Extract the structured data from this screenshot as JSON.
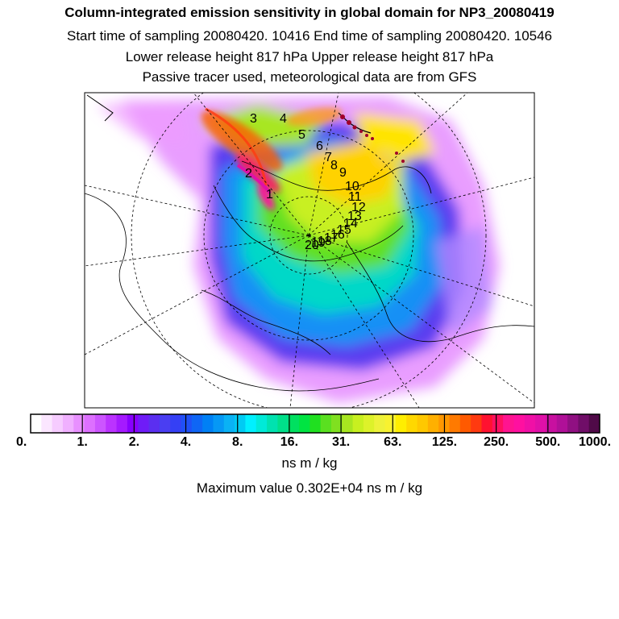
{
  "header": {
    "title": "Column-integrated emission sensitivity in global domain for NP3_20080419",
    "sampling": "Start time of sampling 20080420. 10416     End time of sampling 20080420. 10546",
    "release": "Lower release height  817 hPa        Upper release height  817 hPa",
    "tracer": "Passive tracer used, meteorological data are from GFS"
  },
  "trajectory_labels": [
    "1",
    "2",
    "3",
    "4",
    "5",
    "6",
    "7",
    "8",
    "9",
    "10",
    "11",
    "12",
    "13",
    "14",
    "15",
    "16",
    "17",
    "18",
    "19",
    "20"
  ],
  "legend": {
    "tick_labels": [
      "0.",
      "1.",
      "2.",
      "4.",
      "8.",
      "16.",
      "31.",
      "63.",
      "125.",
      "250.",
      "500.",
      "1000."
    ],
    "colors": [
      "#ffffff",
      "#fbe6ff",
      "#f6ccff",
      "#f0b0ff",
      "#e890ff",
      "#dd70ff",
      "#cc55ff",
      "#bb33ff",
      "#a51aff",
      "#8800ff",
      "#6f1cf7",
      "#5b2ff0",
      "#4a3ef2",
      "#3540f5",
      "#2050f6",
      "#0f66f5",
      "#0080f5",
      "#0698f5",
      "#0ab2f5",
      "#00cbf4",
      "#00f0ff",
      "#00ead8",
      "#00e2b0",
      "#00e08a",
      "#00e060",
      "#00e442",
      "#20e020",
      "#5ae020",
      "#80e020",
      "#a8e620",
      "#c8f020",
      "#ddf22a",
      "#eef23a",
      "#f8f230",
      "#ffee00",
      "#ffd800",
      "#ffc800",
      "#ffb000",
      "#ff9800",
      "#ff7a00",
      "#ff5a00",
      "#ff3a10",
      "#ff1230",
      "#ff1060",
      "#ff1490",
      "#ff10a0",
      "#f010a6",
      "#e010a8",
      "#c810a0",
      "#b01098",
      "#901082",
      "#700e68",
      "#500a48"
    ],
    "unit": "ns m / kg",
    "max_value": "Maximum value  0.302E+04 ns m / kg"
  }
}
